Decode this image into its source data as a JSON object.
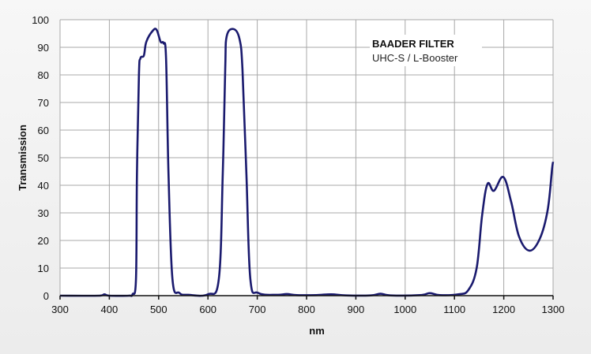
{
  "chart_data": {
    "type": "line",
    "title": "",
    "annotation": {
      "title": "BAADER FILTER",
      "subtitle": "UHC-S / L-Booster"
    },
    "xlabel": "nm",
    "ylabel": "Transmission",
    "xlim": [
      300,
      1300
    ],
    "ylim": [
      0,
      100
    ],
    "xticks": [
      300,
      400,
      500,
      600,
      700,
      800,
      900,
      1000,
      1100,
      1200,
      1300
    ],
    "yticks": [
      0,
      10,
      20,
      30,
      40,
      50,
      60,
      70,
      80,
      90,
      100
    ],
    "grid": true,
    "legend": "none",
    "line_color": "#1a1a6e",
    "series": [
      {
        "x": [
          300,
          380,
          390,
          400,
          440,
          447,
          454,
          456,
          460,
          463,
          470,
          475,
          488,
          496,
          504,
          510,
          515,
          520,
          528,
          542,
          560,
          600,
          622,
          630,
          635,
          638,
          652,
          664,
          670,
          678,
          686,
          702,
          740,
          760,
          780,
          820,
          850,
          880,
          930,
          950,
          970,
          1030,
          1050,
          1070,
          1108,
          1128,
          1145,
          1156,
          1167,
          1180,
          1199,
          1215,
          1231,
          1252,
          1273,
          1289,
          1298,
          1300
        ],
        "y": [
          0,
          0,
          0.5,
          0,
          0,
          0.5,
          6,
          44,
          80,
          86,
          87,
          92,
          96,
          96.3,
          92,
          91.5,
          86,
          44,
          6,
          1,
          0.3,
          0.5,
          6,
          44,
          82,
          94,
          96.6,
          93,
          82,
          44,
          6,
          1,
          0.3,
          0.6,
          0.2,
          0.2,
          0.5,
          0.1,
          0.1,
          0.7,
          0.1,
          0.2,
          0.9,
          0.2,
          0.5,
          2,
          10,
          29,
          40.5,
          38,
          43,
          34,
          21.4,
          16.3,
          20.6,
          31,
          46,
          48.5
        ]
      }
    ]
  }
}
